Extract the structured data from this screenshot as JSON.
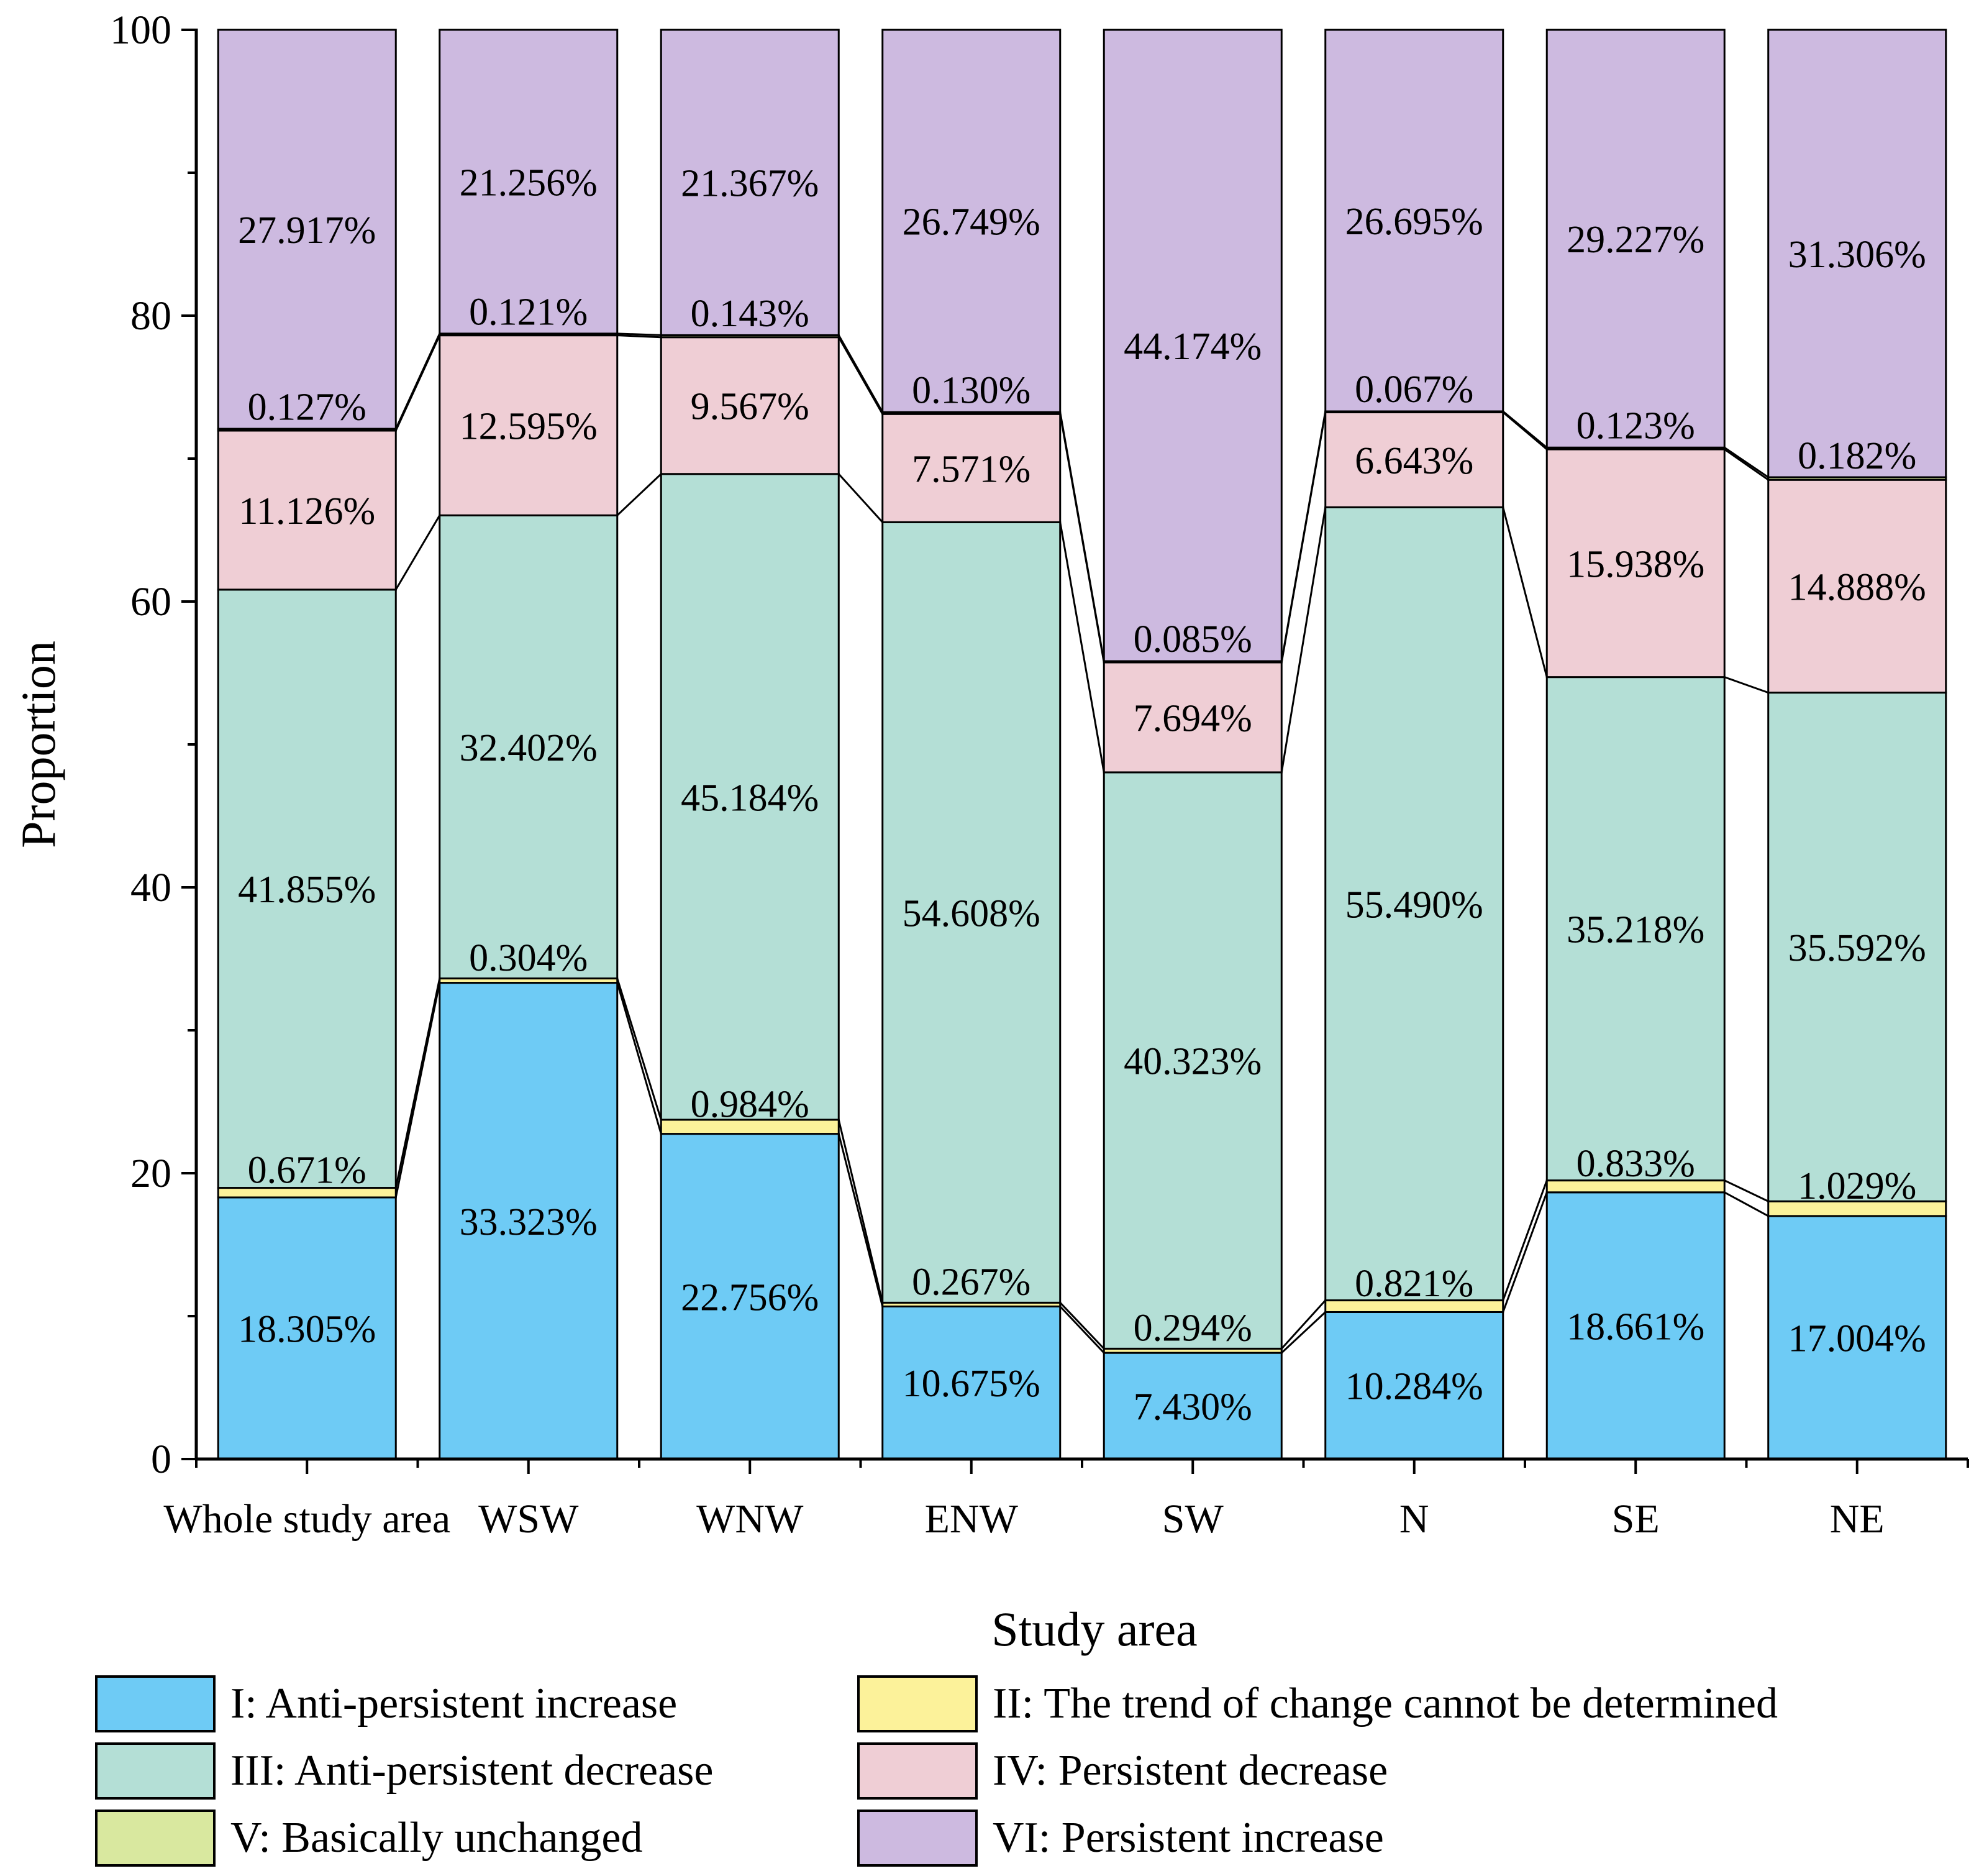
{
  "chart_data": {
    "type": "bar",
    "stacked": true,
    "xlabel": "Study area",
    "ylabel": "Proportion",
    "ylim": [
      0,
      100
    ],
    "y_ticks": [
      0,
      20,
      40,
      60,
      80,
      100
    ],
    "grid": false,
    "legend_position": "bottom",
    "categories": [
      "Whole study area",
      "WSW",
      "WNW",
      "ENW",
      "SW",
      "N",
      "SE",
      "NE"
    ],
    "series": [
      {
        "name": "I: Anti-persistent increase",
        "color": "#6ECBF5",
        "values": [
          18.305,
          33.323,
          22.756,
          10.675,
          7.43,
          10.284,
          18.661,
          17.004
        ],
        "labels": [
          "18.305%",
          "33.323%",
          "22.756%",
          "10.675%",
          "7.430%",
          "10.284%",
          "18.661%",
          "17.004%"
        ]
      },
      {
        "name": "II: The trend of change cannot be determined",
        "color": "#FCF29A",
        "values": [
          0.671,
          0.304,
          0.984,
          0.267,
          0.294,
          0.821,
          0.833,
          1.029
        ],
        "labels": [
          "0.671%",
          "0.304%",
          "0.984%",
          "0.267%",
          "0.294%",
          "0.821%",
          "0.833%",
          "1.029%"
        ]
      },
      {
        "name": "III: Anti-persistent decrease",
        "color": "#B4DFD6",
        "values": [
          41.855,
          32.402,
          45.184,
          54.608,
          40.323,
          55.49,
          35.218,
          35.592
        ],
        "labels": [
          "41.855%",
          "32.402%",
          "45.184%",
          "54.608%",
          "40.323%",
          "55.490%",
          "35.218%",
          "35.592%"
        ]
      },
      {
        "name": "IV: Persistent decrease",
        "color": "#EFCED5",
        "values": [
          11.126,
          12.595,
          9.567,
          7.571,
          7.694,
          6.643,
          15.938,
          14.888
        ],
        "labels": [
          "11.126%",
          "12.595%",
          "9.567%",
          "7.571%",
          "7.694%",
          "6.643%",
          "15.938%",
          "14.888%"
        ]
      },
      {
        "name": "V: Basically unchanged",
        "color": "#D9E89F",
        "values": [
          0.127,
          0.121,
          0.143,
          0.13,
          0.085,
          0.067,
          0.123,
          0.182
        ],
        "labels": [
          "0.127%",
          "0.121%",
          "0.143%",
          "0.130%",
          "0.085%",
          "0.067%",
          "0.123%",
          "0.182%"
        ]
      },
      {
        "name": "VI: Persistent increase",
        "color": "#CDBAE0",
        "values": [
          27.917,
          21.256,
          21.367,
          26.749,
          44.174,
          26.695,
          29.227,
          31.306
        ],
        "labels": [
          "27.917%",
          "21.256%",
          "21.367%",
          "26.749%",
          "44.174%",
          "26.695%",
          "29.227%",
          "31.306%"
        ]
      }
    ]
  }
}
